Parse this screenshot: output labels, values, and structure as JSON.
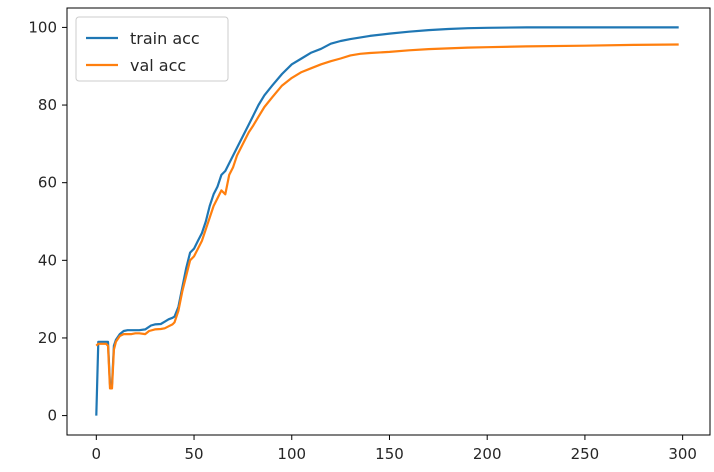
{
  "chart_data": {
    "type": "line",
    "title": "",
    "xlabel": "",
    "ylabel": "",
    "xlim": [
      -15,
      314
    ],
    "ylim": [
      -5,
      105
    ],
    "xticks": [
      0,
      50,
      100,
      150,
      200,
      250,
      300
    ],
    "yticks": [
      0,
      20,
      40,
      60,
      80,
      100
    ],
    "grid": false,
    "legend": "upper-left",
    "series": [
      {
        "name": "train acc",
        "color": "#1f77b4",
        "points": [
          [
            0,
            0
          ],
          [
            1,
            19
          ],
          [
            2,
            19
          ],
          [
            3,
            19
          ],
          [
            4,
            19
          ],
          [
            5,
            19
          ],
          [
            6,
            19
          ],
          [
            7,
            8
          ],
          [
            8,
            8
          ],
          [
            9,
            18
          ],
          [
            10,
            19.5
          ],
          [
            12,
            21
          ],
          [
            14,
            21.8
          ],
          [
            16,
            22
          ],
          [
            18,
            22
          ],
          [
            20,
            22
          ],
          [
            22,
            22
          ],
          [
            25,
            22.2
          ],
          [
            28,
            23.2
          ],
          [
            30,
            23.5
          ],
          [
            33,
            23.6
          ],
          [
            35,
            24.2
          ],
          [
            37,
            24.8
          ],
          [
            39,
            25.2
          ],
          [
            40,
            25.5
          ],
          [
            42,
            28
          ],
          [
            44,
            33
          ],
          [
            46,
            38
          ],
          [
            48,
            42
          ],
          [
            50,
            43
          ],
          [
            52,
            45
          ],
          [
            54,
            47
          ],
          [
            56,
            50
          ],
          [
            58,
            54
          ],
          [
            60,
            57
          ],
          [
            62,
            59
          ],
          [
            64,
            62
          ],
          [
            66,
            63
          ],
          [
            68,
            65
          ],
          [
            70,
            67
          ],
          [
            72,
            69
          ],
          [
            75,
            72
          ],
          [
            78,
            75
          ],
          [
            80,
            77
          ],
          [
            83,
            80
          ],
          [
            86,
            82.5
          ],
          [
            90,
            85
          ],
          [
            95,
            88
          ],
          [
            100,
            90.5
          ],
          [
            105,
            92
          ],
          [
            110,
            93.5
          ],
          [
            115,
            94.5
          ],
          [
            120,
            95.8
          ],
          [
            125,
            96.5
          ],
          [
            130,
            97
          ],
          [
            140,
            97.8
          ],
          [
            150,
            98.4
          ],
          [
            160,
            98.9
          ],
          [
            170,
            99.3
          ],
          [
            180,
            99.6
          ],
          [
            190,
            99.8
          ],
          [
            200,
            99.9
          ],
          [
            220,
            100
          ],
          [
            250,
            100
          ],
          [
            298,
            100
          ]
        ]
      },
      {
        "name": "val acc",
        "color": "#ff7f0e",
        "points": [
          [
            0,
            18
          ],
          [
            1,
            18.5
          ],
          [
            2,
            18.5
          ],
          [
            3,
            18.5
          ],
          [
            4,
            18.5
          ],
          [
            5,
            18.5
          ],
          [
            6,
            18
          ],
          [
            7,
            7
          ],
          [
            8,
            7
          ],
          [
            9,
            17
          ],
          [
            10,
            19
          ],
          [
            12,
            20.5
          ],
          [
            14,
            21
          ],
          [
            16,
            21
          ],
          [
            18,
            21
          ],
          [
            20,
            21.2
          ],
          [
            22,
            21.2
          ],
          [
            25,
            21
          ],
          [
            27,
            21.8
          ],
          [
            30,
            22.2
          ],
          [
            33,
            22.3
          ],
          [
            35,
            22.5
          ],
          [
            37,
            23
          ],
          [
            39,
            23.5
          ],
          [
            40,
            24
          ],
          [
            42,
            27
          ],
          [
            44,
            32
          ],
          [
            46,
            36
          ],
          [
            48,
            40
          ],
          [
            50,
            41
          ],
          [
            52,
            43
          ],
          [
            54,
            45
          ],
          [
            56,
            48
          ],
          [
            58,
            51
          ],
          [
            60,
            54
          ],
          [
            62,
            56
          ],
          [
            64,
            58
          ],
          [
            66,
            57
          ],
          [
            68,
            62
          ],
          [
            70,
            64
          ],
          [
            72,
            67
          ],
          [
            75,
            70
          ],
          [
            78,
            73
          ],
          [
            80,
            74.5
          ],
          [
            83,
            77
          ],
          [
            86,
            79.5
          ],
          [
            90,
            82
          ],
          [
            95,
            85
          ],
          [
            100,
            87
          ],
          [
            105,
            88.5
          ],
          [
            110,
            89.5
          ],
          [
            115,
            90.5
          ],
          [
            120,
            91.3
          ],
          [
            125,
            92
          ],
          [
            130,
            92.8
          ],
          [
            135,
            93.2
          ],
          [
            140,
            93.4
          ],
          [
            150,
            93.7
          ],
          [
            160,
            94.1
          ],
          [
            170,
            94.4
          ],
          [
            180,
            94.6
          ],
          [
            190,
            94.8
          ],
          [
            200,
            94.9
          ],
          [
            220,
            95.1
          ],
          [
            250,
            95.3
          ],
          [
            275,
            95.5
          ],
          [
            298,
            95.6
          ]
        ]
      }
    ]
  }
}
